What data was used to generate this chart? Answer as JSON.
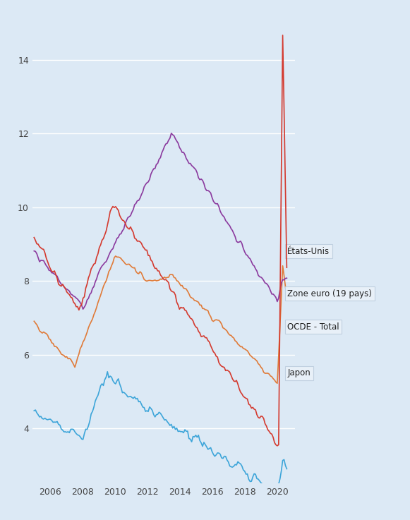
{
  "background_color": "#dce9f5",
  "plot_bg_color": "#dce9f5",
  "line_colors": {
    "etats_unis": "#d43a2f",
    "zone_euro": "#8b3a9e",
    "ocde": "#e07b39",
    "japon": "#3da5d9"
  },
  "ylim": [
    2.5,
    15.2
  ],
  "xlim_start": 2004.92,
  "xlim_end": 2021.1,
  "yticks": [
    4,
    6,
    8,
    10,
    12,
    14
  ],
  "xtick_years": [
    2006,
    2008,
    2010,
    2012,
    2014,
    2016,
    2018,
    2020
  ],
  "labels": {
    "etats_unis": "États-Unis",
    "zone_euro": "Zone euro (19 pays)",
    "ocde": "OCDE - Total",
    "japon": "Japon"
  },
  "label_box_color": "#e8f0f8",
  "label_box_edge": "#c0d0e0",
  "label_text_color": "#222222",
  "grid_color": "#ffffff",
  "tick_color": "#444444",
  "tick_fontsize": 9,
  "linewidth": 1.2
}
